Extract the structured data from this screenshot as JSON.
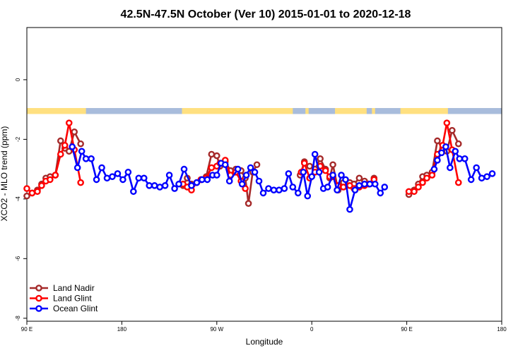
{
  "chart_data": {
    "type": "line",
    "title": "42.5N-47.5N October (Ver 10)   2015-01-01 to 2020-12-18",
    "xlabel": "Longitude",
    "ylabel": "XCO2 - MLO trend (ppm)",
    "x_ticks": [
      {
        "value": 90,
        "label": "90 E"
      },
      {
        "value": 180,
        "label": "180"
      },
      {
        "value": 270,
        "label": "90 W"
      },
      {
        "value": 360,
        "label": "0"
      },
      {
        "value": 450,
        "label": "90 E"
      },
      {
        "value": 540,
        "label": "180"
      }
    ],
    "y_ticks": [
      {
        "value": 0,
        "label": "0"
      },
      {
        "value": -2,
        "label": "-2"
      },
      {
        "value": -4,
        "label": "-4"
      },
      {
        "value": -6,
        "label": "-6"
      },
      {
        "value": -8,
        "label": "-8"
      }
    ],
    "xlim": [
      90,
      540
    ],
    "ylim": [
      -8.1,
      1.75
    ],
    "grid": false,
    "legend_position": "bottom-left",
    "land_band": {
      "y_range": [
        -1.15,
        -0.95
      ],
      "land_color": "#FFE080",
      "ocean_color": "#A8BCDC",
      "ocean_x_ranges": [
        [
          146,
          237
        ],
        [
          342,
          354
        ],
        [
          357,
          382
        ],
        [
          412,
          417
        ],
        [
          420,
          444
        ],
        [
          489,
          540
        ]
      ]
    },
    "series": [
      {
        "name": "Land Nadir",
        "color": "#A52A2A",
        "points": [
          [
            90,
            -3.9
          ],
          [
            95,
            -3.8
          ],
          [
            100,
            -3.7
          ],
          [
            104,
            -3.5
          ],
          [
            108,
            -3.3
          ],
          [
            112,
            -3.25
          ],
          [
            117,
            -3.2
          ],
          [
            122,
            -2.05
          ],
          [
            126,
            -2.3
          ],
          [
            130,
            -2.4
          ],
          [
            135,
            -1.75
          ],
          [
            141,
            -2.15
          ],
          [
            238,
            -3.55
          ],
          [
            242,
            -3.3
          ],
          [
            246,
            -3.5
          ],
          [
            251,
            -3.45
          ],
          [
            255,
            -3.35
          ],
          [
            260,
            -3.25
          ],
          [
            265,
            -2.5
          ],
          [
            270,
            -2.55
          ],
          [
            273,
            -2.9
          ],
          [
            278,
            -2.75
          ],
          [
            283,
            -3.05
          ],
          [
            288,
            -3.0
          ],
          [
            293,
            -3.05
          ],
          [
            297,
            -3.3
          ],
          [
            300,
            -4.15
          ],
          [
            304,
            -3.1
          ],
          [
            308,
            -2.85
          ],
          [
            349,
            -3.2
          ],
          [
            353,
            -2.75
          ],
          [
            358,
            -2.9
          ],
          [
            363,
            -3.0
          ],
          [
            368,
            -2.65
          ],
          [
            373,
            -3.0
          ],
          [
            377,
            -3.3
          ],
          [
            380,
            -2.85
          ],
          [
            385,
            -3.7
          ],
          [
            390,
            -3.45
          ],
          [
            396,
            -3.45
          ],
          [
            400,
            -3.5
          ],
          [
            405,
            -3.3
          ],
          [
            410,
            -3.4
          ],
          [
            414,
            -3.5
          ],
          [
            419,
            -3.3
          ],
          [
            452,
            -3.85
          ],
          [
            457,
            -3.7
          ],
          [
            461,
            -3.5
          ],
          [
            465,
            -3.25
          ],
          [
            469,
            -3.2
          ],
          [
            474,
            -3.1
          ],
          [
            479,
            -2.05
          ],
          [
            484,
            -2.3
          ],
          [
            488,
            -2.4
          ],
          [
            493,
            -1.7
          ],
          [
            499,
            -2.15
          ]
        ]
      },
      {
        "name": "Land Glint",
        "color": "#FF0000",
        "points": [
          [
            90,
            -3.65
          ],
          [
            95,
            -3.8
          ],
          [
            100,
            -3.75
          ],
          [
            104,
            -3.55
          ],
          [
            108,
            -3.4
          ],
          [
            112,
            -3.35
          ],
          [
            117,
            -3.2
          ],
          [
            122,
            -2.5
          ],
          [
            126,
            -2.2
          ],
          [
            130,
            -1.45
          ],
          [
            135,
            -2.35
          ],
          [
            141,
            -3.45
          ],
          [
            238,
            -3.5
          ],
          [
            242,
            -3.6
          ],
          [
            246,
            -3.7
          ],
          [
            251,
            -3.45
          ],
          [
            255,
            -3.35
          ],
          [
            260,
            -3.3
          ],
          [
            265,
            -2.95
          ],
          [
            270,
            -2.9
          ],
          [
            273,
            -2.8
          ],
          [
            278,
            -2.7
          ],
          [
            283,
            -3.2
          ],
          [
            288,
            -3.1
          ],
          [
            293,
            -3.4
          ],
          [
            297,
            -3.65
          ],
          [
            350,
            -3.1
          ],
          [
            353,
            -2.8
          ],
          [
            358,
            -3.3
          ],
          [
            363,
            -3.1
          ],
          [
            368,
            -2.9
          ],
          [
            373,
            -3.05
          ],
          [
            377,
            -3.25
          ],
          [
            380,
            -3.25
          ],
          [
            385,
            -3.55
          ],
          [
            390,
            -3.6
          ],
          [
            396,
            -3.55
          ],
          [
            400,
            -3.65
          ],
          [
            405,
            -3.6
          ],
          [
            410,
            -3.55
          ],
          [
            414,
            -3.5
          ],
          [
            419,
            -3.35
          ],
          [
            452,
            -3.75
          ],
          [
            457,
            -3.75
          ],
          [
            461,
            -3.6
          ],
          [
            465,
            -3.45
          ],
          [
            469,
            -3.3
          ],
          [
            474,
            -3.2
          ],
          [
            479,
            -2.5
          ],
          [
            484,
            -2.2
          ],
          [
            488,
            -1.45
          ],
          [
            493,
            -2.35
          ],
          [
            499,
            -3.45
          ]
        ]
      },
      {
        "name": "Ocean Glint",
        "color": "#0000FF",
        "points": [
          [
            133,
            -2.25
          ],
          [
            138,
            -2.95
          ],
          [
            142,
            -2.4
          ],
          [
            146,
            -2.65
          ],
          [
            151,
            -2.65
          ],
          [
            156,
            -3.35
          ],
          [
            161,
            -2.95
          ],
          [
            166,
            -3.3
          ],
          [
            171,
            -3.25
          ],
          [
            176,
            -3.15
          ],
          [
            181,
            -3.35
          ],
          [
            186,
            -3.1
          ],
          [
            191,
            -3.75
          ],
          [
            196,
            -3.3
          ],
          [
            201,
            -3.3
          ],
          [
            206,
            -3.55
          ],
          [
            211,
            -3.55
          ],
          [
            216,
            -3.6
          ],
          [
            221,
            -3.55
          ],
          [
            225,
            -3.2
          ],
          [
            230,
            -3.65
          ],
          [
            234,
            -3.5
          ],
          [
            239,
            -3.0
          ],
          [
            246,
            -3.55
          ],
          [
            251,
            -3.45
          ],
          [
            256,
            -3.35
          ],
          [
            261,
            -3.35
          ],
          [
            266,
            -3.2
          ],
          [
            270,
            -3.2
          ],
          [
            274,
            -2.8
          ],
          [
            278,
            -2.85
          ],
          [
            282,
            -3.4
          ],
          [
            290,
            -3.0
          ],
          [
            294,
            -3.5
          ],
          [
            298,
            -3.2
          ],
          [
            302,
            -2.95
          ],
          [
            306,
            -3.1
          ],
          [
            310,
            -3.4
          ],
          [
            314,
            -3.8
          ],
          [
            319,
            -3.65
          ],
          [
            324,
            -3.7
          ],
          [
            329,
            -3.7
          ],
          [
            334,
            -3.65
          ],
          [
            338,
            -3.15
          ],
          [
            342,
            -3.6
          ],
          [
            347,
            -3.8
          ],
          [
            352,
            -3.1
          ],
          [
            356,
            -3.9
          ],
          [
            360,
            -3.25
          ],
          [
            363,
            -2.5
          ],
          [
            367,
            -3.1
          ],
          [
            371,
            -3.65
          ],
          [
            375,
            -3.6
          ],
          [
            380,
            -3.2
          ],
          [
            384,
            -3.7
          ],
          [
            388,
            -3.2
          ],
          [
            392,
            -3.35
          ],
          [
            396,
            -4.35
          ],
          [
            401,
            -3.7
          ],
          [
            405,
            -3.55
          ],
          [
            410,
            -3.5
          ],
          [
            415,
            -3.5
          ],
          [
            420,
            -3.5
          ],
          [
            425,
            -3.8
          ],
          [
            429,
            -3.6
          ],
          [
            476,
            -3.0
          ],
          [
            479,
            -2.7
          ],
          [
            483,
            -2.45
          ],
          [
            487,
            -2.25
          ],
          [
            491,
            -2.95
          ],
          [
            496,
            -2.4
          ],
          [
            500,
            -2.65
          ],
          [
            505,
            -2.65
          ],
          [
            511,
            -3.35
          ],
          [
            516,
            -2.95
          ],
          [
            521,
            -3.3
          ],
          [
            526,
            -3.25
          ],
          [
            531,
            -3.15
          ]
        ]
      }
    ]
  }
}
